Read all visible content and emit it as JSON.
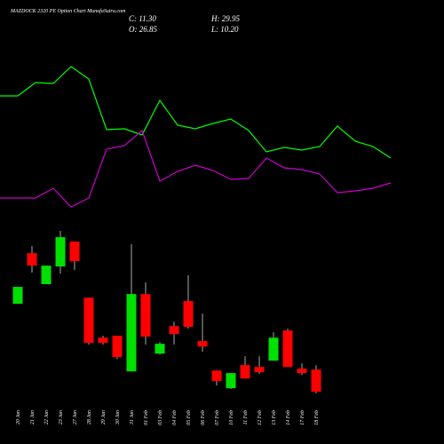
{
  "chart_data": [
    {
      "type": "line",
      "ylim": [
        0,
        100
      ],
      "series": [
        {
          "color": "#00ff00",
          "values": [
            71,
            71,
            78.5,
            78,
            87.5,
            80.5,
            52,
            52.5,
            49,
            68.5,
            54.5,
            52.5,
            55.5,
            58,
            51.5,
            39.5,
            42,
            40.5,
            42.5,
            54,
            45.5,
            42.5,
            36
          ]
        },
        {
          "color": "#cc00cc",
          "values": [
            13.5,
            13.5,
            13.5,
            19,
            8.5,
            13.5,
            41,
            43,
            51.5,
            23,
            28.5,
            32,
            29,
            24,
            24.5,
            36,
            30.5,
            29.5,
            27,
            16.5,
            17.5,
            19,
            22
          ]
        }
      ]
    },
    {
      "type": "candlestick",
      "title": "MAZDOCK 2320 PE Option Chart MunafaSutra.com",
      "info": [
        "C: 11.30",
        "H: 29.95",
        "O: 26.85",
        "L: 10.20"
      ],
      "up_color": "#00e000",
      "down_color": "#ff0000",
      "ylim": [
        10.2,
        123.9
      ],
      "categories": [
        "20 Jan",
        "21 Jan",
        "22 Jan",
        "23 Jan",
        "27 Jan",
        "28 Jan",
        "29 Jan",
        "30 Jan",
        "31 Jan",
        "01 Feb",
        "03 Feb",
        "04 Feb",
        "05 Feb",
        "06 Feb",
        "07 Feb",
        "10 Feb",
        "11 Feb",
        "12 Feb",
        "13 Feb",
        "14 Feb",
        "17 Feb",
        "18 Feb"
      ],
      "open": [
        72.9,
        108.3,
        86.6,
        99.0,
        116.4,
        77.2,
        49.2,
        50.5,
        25.6,
        79.7,
        38.0,
        57.3,
        74.8,
        46.8,
        26.2,
        13.8,
        30.0,
        28.7,
        33.1,
        54.2,
        27.5,
        26.85
      ],
      "high": [
        84.7,
        113.3,
        99.6,
        123.9,
        116.4,
        77.2,
        50.5,
        50.5,
        114.6,
        87.8,
        46.1,
        60.4,
        92.8,
        66.0,
        26.2,
        24.4,
        36.2,
        36.2,
        53.0,
        55.5,
        31.2,
        29.95
      ],
      "low": [
        72.9,
        94.6,
        86.6,
        94.0,
        96.5,
        44.3,
        44.3,
        34.3,
        25.6,
        44.3,
        37.4,
        44.3,
        55.5,
        39.3,
        15.7,
        13.2,
        20.6,
        23.7,
        33.1,
        28.7,
        23.1,
        10.2
      ],
      "close": [
        84.7,
        99.6,
        99.6,
        119.5,
        102.7,
        45.5,
        45.5,
        35.6,
        79.7,
        49.9,
        44.9,
        51.7,
        56.7,
        43.0,
        18.8,
        24.4,
        20.6,
        25.0,
        49.2,
        28.7,
        24.4,
        11.3
      ]
    }
  ]
}
